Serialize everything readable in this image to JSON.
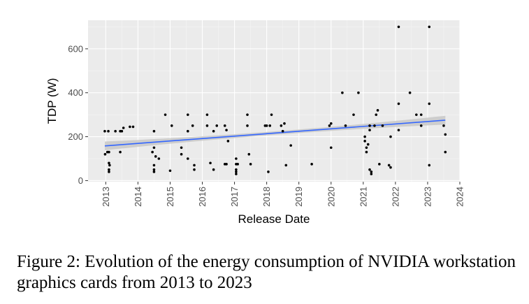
{
  "chart_data": {
    "type": "scatter",
    "xlabel": "Release Date",
    "ylabel": "TDP (W)",
    "x_ticks": [
      "2013",
      "2014",
      "2015",
      "2016",
      "2017",
      "2018",
      "2019",
      "2020",
      "2021",
      "2022",
      "2023",
      "2024"
    ],
    "y_ticks": [
      0,
      200,
      400,
      600
    ],
    "xlim": [
      2012.45,
      2024.0
    ],
    "ylim": [
      -5,
      730
    ],
    "grid": true,
    "background": "#ebebeb",
    "point_color": "#000000",
    "trend_color": "#3366ff",
    "band_color": "#c8c8c8",
    "points": [
      [
        2012.97,
        225
      ],
      [
        2013.08,
        225
      ],
      [
        2013.3,
        225
      ],
      [
        2013.45,
        225
      ],
      [
        2013.5,
        225
      ],
      [
        2013.55,
        240
      ],
      [
        2013.75,
        245
      ],
      [
        2013.85,
        245
      ],
      [
        2013.05,
        130
      ],
      [
        2013.1,
        130
      ],
      [
        2013.45,
        130
      ],
      [
        2012.98,
        120
      ],
      [
        2013.1,
        80
      ],
      [
        2013.12,
        70
      ],
      [
        2013.1,
        50
      ],
      [
        2013.1,
        40
      ],
      [
        2014.5,
        225
      ],
      [
        2014.5,
        150
      ],
      [
        2014.45,
        130
      ],
      [
        2014.55,
        110
      ],
      [
        2014.65,
        100
      ],
      [
        2014.5,
        70
      ],
      [
        2014.5,
        50
      ],
      [
        2014.5,
        40
      ],
      [
        2014.85,
        300
      ],
      [
        2015.05,
        250
      ],
      [
        2015.0,
        45
      ],
      [
        2015.35,
        150
      ],
      [
        2015.35,
        120
      ],
      [
        2015.55,
        100
      ],
      [
        2015.55,
        300
      ],
      [
        2015.55,
        225
      ],
      [
        2015.7,
        250
      ],
      [
        2015.75,
        70
      ],
      [
        2015.75,
        50
      ],
      [
        2016.15,
        300
      ],
      [
        2016.15,
        250
      ],
      [
        2016.25,
        80
      ],
      [
        2016.35,
        225
      ],
      [
        2016.45,
        250
      ],
      [
        2016.35,
        50
      ],
      [
        2016.7,
        250
      ],
      [
        2016.75,
        230
      ],
      [
        2016.7,
        75
      ],
      [
        2016.75,
        75
      ],
      [
        2016.8,
        180
      ],
      [
        2017.05,
        100
      ],
      [
        2017.05,
        75
      ],
      [
        2017.05,
        50
      ],
      [
        2017.05,
        40
      ],
      [
        2017.05,
        30
      ],
      [
        2017.1,
        75
      ],
      [
        2017.4,
        300
      ],
      [
        2017.4,
        250
      ],
      [
        2017.45,
        120
      ],
      [
        2017.5,
        75
      ],
      [
        2017.95,
        250
      ],
      [
        2018.0,
        250
      ],
      [
        2018.1,
        250
      ],
      [
        2018.15,
        300
      ],
      [
        2018.05,
        40
      ],
      [
        2018.45,
        250
      ],
      [
        2018.5,
        225
      ],
      [
        2018.55,
        260
      ],
      [
        2018.6,
        70
      ],
      [
        2018.75,
        160
      ],
      [
        2019.4,
        75
      ],
      [
        2019.95,
        250
      ],
      [
        2020.0,
        260
      ],
      [
        2020.0,
        150
      ],
      [
        2020.35,
        400
      ],
      [
        2020.45,
        250
      ],
      [
        2020.7,
        300
      ],
      [
        2020.85,
        400
      ],
      [
        2021.05,
        200
      ],
      [
        2021.05,
        180
      ],
      [
        2021.1,
        150
      ],
      [
        2021.15,
        165
      ],
      [
        2021.1,
        130
      ],
      [
        2021.2,
        250
      ],
      [
        2021.2,
        230
      ],
      [
        2021.2,
        50
      ],
      [
        2021.25,
        40
      ],
      [
        2021.25,
        30
      ],
      [
        2021.35,
        250
      ],
      [
        2021.4,
        300
      ],
      [
        2021.45,
        320
      ],
      [
        2021.5,
        75
      ],
      [
        2021.6,
        250
      ],
      [
        2021.8,
        70
      ],
      [
        2021.85,
        60
      ],
      [
        2021.85,
        200
      ],
      [
        2022.1,
        700
      ],
      [
        2022.1,
        350
      ],
      [
        2022.1,
        230
      ],
      [
        2022.45,
        400
      ],
      [
        2022.65,
        300
      ],
      [
        2022.8,
        300
      ],
      [
        2022.8,
        250
      ],
      [
        2023.05,
        700
      ],
      [
        2023.05,
        350
      ],
      [
        2023.05,
        70
      ],
      [
        2023.5,
        250
      ],
      [
        2023.55,
        210
      ],
      [
        2023.55,
        130
      ]
    ],
    "trend": {
      "x": [
        2012.97,
        2023.55
      ],
      "y": [
        158,
        275
      ],
      "band_halfwidth_ends": 20,
      "band_halfwidth_mid": 8
    }
  },
  "caption": "Figure 2: Evolution of the energy consumption of NVIDIA workstation graphics cards from 2013 to 2023"
}
